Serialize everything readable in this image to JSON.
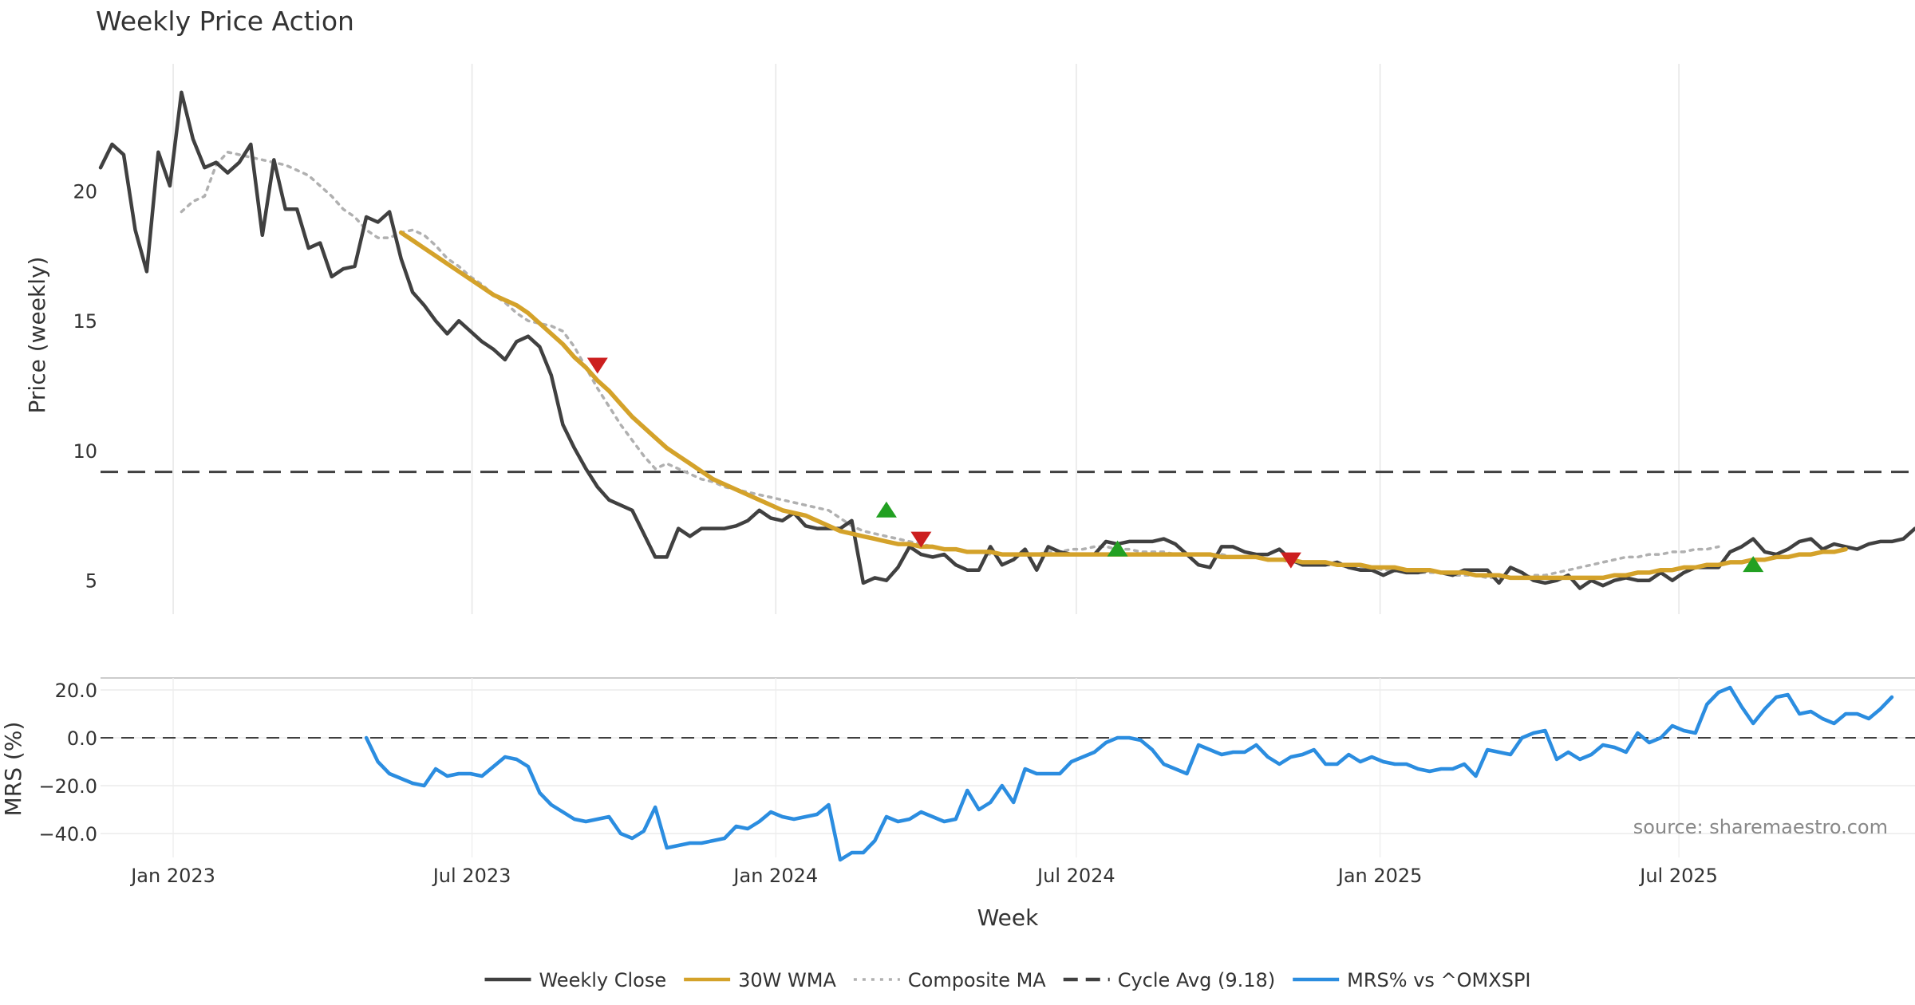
{
  "chart_data": [
    {
      "type": "line",
      "title": "Weekly Price Action",
      "ylabel": "Price (weekly)",
      "ylim": [
        3.7,
        24.9
      ],
      "yticks": [
        5,
        10,
        15,
        20
      ],
      "grid": "vertical",
      "x_range": [
        "2022-11-18",
        "2025-11-21"
      ],
      "cycle_avg": 9.18,
      "series": [
        {
          "name": "Weekly Close",
          "color": "#404040",
          "style": "solid",
          "start": "2022-11-18",
          "step_days": 7,
          "values": [
            20.9,
            21.8,
            21.4,
            18.5,
            16.9,
            21.5,
            20.2,
            23.8,
            22.0,
            20.9,
            21.1,
            20.7,
            21.1,
            21.8,
            18.3,
            21.2,
            19.3,
            19.3,
            17.8,
            18.0,
            16.7,
            17.0,
            17.1,
            19.0,
            18.8,
            19.2,
            17.4,
            16.1,
            15.6,
            15.0,
            14.5,
            15.0,
            14.6,
            14.2,
            13.9,
            13.5,
            14.2,
            14.4,
            14.0,
            12.9,
            11.0,
            10.1,
            9.3,
            8.6,
            8.1,
            7.9,
            7.7,
            6.8,
            5.9,
            5.9,
            7.0,
            6.7,
            7.0,
            7.0,
            7.0,
            7.1,
            7.3,
            7.7,
            7.4,
            7.3,
            7.6,
            7.1,
            7.0,
            7.0,
            7.0,
            7.3,
            4.9,
            5.1,
            5.0,
            5.5,
            6.3,
            6.0,
            5.9,
            6.0,
            5.6,
            5.4,
            5.4,
            6.3,
            5.6,
            5.8,
            6.2,
            5.4,
            6.3,
            6.1,
            6.0,
            6.0,
            6.0,
            6.5,
            6.4,
            6.5,
            6.5,
            6.5,
            6.6,
            6.4,
            6.0,
            5.6,
            5.5,
            6.3,
            6.3,
            6.1,
            6.0,
            6.0,
            6.2,
            5.8,
            5.6,
            5.6,
            5.6,
            5.7,
            5.5,
            5.4,
            5.4,
            5.2,
            5.4,
            5.3,
            5.3,
            5.4,
            5.3,
            5.2,
            5.4,
            5.4,
            5.4,
            4.9,
            5.5,
            5.3,
            5.0,
            4.9,
            5.0,
            5.2,
            4.7,
            5.0,
            4.8,
            5.0,
            5.1,
            5.0,
            5.0,
            5.3,
            5.0,
            5.3,
            5.5,
            5.5,
            5.5,
            6.1,
            6.3,
            6.6,
            6.1,
            6.0,
            6.2,
            6.5,
            6.6,
            6.2,
            6.4,
            6.3,
            6.2,
            6.4,
            6.5,
            6.5,
            6.6,
            7.0
          ]
        },
        {
          "name": "30W WMA",
          "color": "#d4a22a",
          "style": "solid",
          "start": "2023-05-19",
          "step_days": 7,
          "values": [
            18.4,
            18.1,
            17.8,
            17.5,
            17.2,
            16.9,
            16.6,
            16.3,
            16.0,
            15.8,
            15.6,
            15.3,
            14.9,
            14.5,
            14.1,
            13.6,
            13.2,
            12.7,
            12.3,
            11.8,
            11.3,
            10.9,
            10.5,
            10.1,
            9.8,
            9.5,
            9.2,
            8.9,
            8.7,
            8.5,
            8.3,
            8.1,
            7.9,
            7.7,
            7.6,
            7.5,
            7.3,
            7.1,
            6.9,
            6.8,
            6.7,
            6.6,
            6.5,
            6.4,
            6.4,
            6.3,
            6.3,
            6.2,
            6.2,
            6.1,
            6.1,
            6.1,
            6.0,
            6.0,
            6.0,
            6.0,
            6.0,
            6.0,
            6.0,
            6.0,
            6.0,
            6.0,
            6.0,
            6.0,
            6.0,
            6.0,
            6.0,
            6.0,
            6.0,
            6.0,
            6.0,
            5.9,
            5.9,
            5.9,
            5.9,
            5.8,
            5.8,
            5.8,
            5.7,
            5.7,
            5.7,
            5.6,
            5.6,
            5.6,
            5.5,
            5.5,
            5.5,
            5.4,
            5.4,
            5.4,
            5.3,
            5.3,
            5.3,
            5.2,
            5.2,
            5.2,
            5.1,
            5.1,
            5.1,
            5.1,
            5.1,
            5.1,
            5.1,
            5.1,
            5.1,
            5.2,
            5.2,
            5.3,
            5.3,
            5.4,
            5.4,
            5.5,
            5.5,
            5.6,
            5.6,
            5.7,
            5.7,
            5.8,
            5.8,
            5.9,
            5.9,
            6.0,
            6.0,
            6.1,
            6.1,
            6.2
          ]
        },
        {
          "name": "Composite MA",
          "color": "#b0b0b0",
          "style": "dotted",
          "start": "2023-01-06",
          "step_days": 7,
          "values": [
            19.2,
            19.6,
            19.8,
            21.0,
            21.5,
            21.4,
            21.3,
            21.2,
            21.1,
            21.0,
            20.8,
            20.6,
            20.2,
            19.8,
            19.3,
            19.0,
            18.5,
            18.2,
            18.2,
            18.4,
            18.5,
            18.3,
            17.9,
            17.4,
            17.1,
            16.7,
            16.4,
            16.0,
            15.7,
            15.3,
            15.0,
            14.9,
            14.8,
            14.6,
            14.0,
            13.2,
            12.4,
            11.7,
            11.0,
            10.4,
            9.8,
            9.3,
            9.5,
            9.3,
            9.1,
            8.9,
            8.8,
            8.6,
            8.5,
            8.4,
            8.3,
            8.2,
            8.1,
            8.0,
            7.9,
            7.8,
            7.7,
            7.4,
            7.1,
            6.9,
            6.8,
            6.7,
            6.6,
            6.5,
            6.4,
            6.3,
            6.2,
            6.2,
            6.1,
            6.1,
            6.0,
            6.0,
            6.0,
            6.0,
            6.0,
            6.1,
            6.1,
            6.2,
            6.2,
            6.3,
            6.3,
            6.2,
            6.2,
            6.1,
            6.1,
            6.1,
            6.0,
            6.0,
            6.0,
            6.0,
            6.0,
            5.9,
            5.9,
            5.9,
            5.8,
            5.8,
            5.7,
            5.7,
            5.6,
            5.6,
            5.6,
            5.5,
            5.5,
            5.5,
            5.4,
            5.4,
            5.4,
            5.3,
            5.3,
            5.3,
            5.2,
            5.2,
            5.2,
            5.1,
            5.1,
            5.1,
            5.1,
            5.2,
            5.2,
            5.3,
            5.4,
            5.5,
            5.6,
            5.7,
            5.8,
            5.9,
            5.9,
            6.0,
            6.0,
            6.1,
            6.1,
            6.2,
            6.2,
            6.3
          ]
        }
      ],
      "signals_down": [
        {
          "x": "2023-09-15",
          "y": 13.3
        },
        {
          "x": "2024-03-29",
          "y": 6.6
        },
        {
          "x": "2024-11-08",
          "y": 5.8
        }
      ],
      "signals_up": [
        {
          "x": "2024-03-08",
          "y": 7.7
        },
        {
          "x": "2024-07-26",
          "y": 6.2
        },
        {
          "x": "2025-08-15",
          "y": 5.6
        }
      ],
      "signal_colors": {
        "up": "#22a022",
        "down": "#cc1f1f"
      }
    },
    {
      "type": "line",
      "ylabel": "MRS (%)",
      "xlabel": "Week",
      "ylim": [
        -50,
        25
      ],
      "yticks": [
        20,
        0,
        -20,
        -40
      ],
      "ytick_labels": [
        "20.0",
        "0.0",
        "−20.0",
        "−40.0"
      ],
      "x_range": [
        "2022-11-18",
        "2025-11-21"
      ],
      "xticks": [
        {
          "date": "2023-01-01",
          "label": "Jan 2023"
        },
        {
          "date": "2023-07-01",
          "label": "Jul 2023"
        },
        {
          "date": "2024-01-01",
          "label": "Jan 2024"
        },
        {
          "date": "2024-07-01",
          "label": "Jul 2024"
        },
        {
          "date": "2025-01-01",
          "label": "Jan 2025"
        },
        {
          "date": "2025-07-01",
          "label": "Jul 2025"
        }
      ],
      "series": [
        {
          "name": "MRS% vs ^OMXSPI",
          "color": "#2b8de0",
          "style": "solid",
          "start": "2023-04-28",
          "step_days": 7,
          "values": [
            0,
            -10,
            -15,
            -17,
            -19,
            -20,
            -13,
            -16,
            -15,
            -15,
            -16,
            -12,
            -8,
            -9,
            -12,
            -23,
            -28,
            -31,
            -34,
            -35,
            -34,
            -33,
            -40,
            -42,
            -39,
            -29,
            -46,
            -45,
            -44,
            -44,
            -43,
            -42,
            -37,
            -38,
            -35,
            -31,
            -33,
            -34,
            -33,
            -32,
            -28,
            -51,
            -48,
            -48,
            -43,
            -33,
            -35,
            -34,
            -31,
            -33,
            -35,
            -34,
            -22,
            -30,
            -27,
            -20,
            -27,
            -13,
            -15,
            -15,
            -15,
            -10,
            -8,
            -6,
            -2,
            0,
            0,
            -1,
            -5,
            -11,
            -13,
            -15,
            -3,
            -5,
            -7,
            -6,
            -6,
            -3,
            -8,
            -11,
            -8,
            -7,
            -5,
            -11,
            -11,
            -7,
            -10,
            -8,
            -10,
            -11,
            -11,
            -13,
            -14,
            -13,
            -13,
            -11,
            -16,
            -5,
            -6,
            -7,
            0,
            2,
            3,
            -9,
            -6,
            -9,
            -7,
            -3,
            -4,
            -6,
            2,
            -2,
            0,
            5,
            3,
            2,
            14,
            19,
            21,
            13,
            6,
            12,
            17,
            18,
            10,
            11,
            8,
            6,
            10,
            10,
            8,
            12,
            17
          ]
        }
      ],
      "source": "source: sharemaestro.com"
    }
  ],
  "legend": {
    "placement": "bottom-center",
    "items": [
      {
        "label": "Weekly Close",
        "color": "#404040",
        "style": "solid"
      },
      {
        "label": "30W WMA",
        "color": "#d4a22a",
        "style": "solid"
      },
      {
        "label": "Composite MA",
        "color": "#b0b0b0",
        "style": "dotted"
      },
      {
        "label": "Cycle Avg (9.18)",
        "color": "#404040",
        "style": "dashed"
      },
      {
        "label": "MRS% vs ^OMXSPI",
        "color": "#2b8de0",
        "style": "solid"
      }
    ]
  }
}
